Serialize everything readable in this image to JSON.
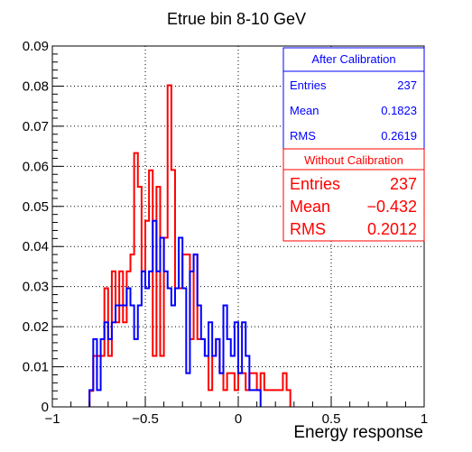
{
  "chart_data": {
    "type": "histogram",
    "title": "Etrue bin 8-10 GeV",
    "xlabel": "Energy response",
    "ylabel": "",
    "xlim": [
      -1,
      1
    ],
    "ylim": [
      0,
      0.09
    ],
    "grid": true,
    "x_ticks": [
      {
        "v": -1,
        "label": "−1"
      },
      {
        "v": -0.5,
        "label": "−0.5"
      },
      {
        "v": 0,
        "label": "0"
      },
      {
        "v": 0.5,
        "label": "0.5"
      },
      {
        "v": 1,
        "label": "1"
      }
    ],
    "y_ticks": [
      {
        "v": 0,
        "label": "0"
      },
      {
        "v": 0.01,
        "label": "0.01"
      },
      {
        "v": 0.02,
        "label": "0.02"
      },
      {
        "v": 0.03,
        "label": "0.03"
      },
      {
        "v": 0.04,
        "label": "0.04"
      },
      {
        "v": 0.05,
        "label": "0.05"
      },
      {
        "v": 0.06,
        "label": "0.06"
      },
      {
        "v": 0.07,
        "label": "0.07"
      },
      {
        "v": 0.08,
        "label": "0.08"
      },
      {
        "v": 0.09,
        "label": "0.09"
      }
    ],
    "bin_edges_start": -0.8,
    "bin_width": 0.02,
    "series": [
      {
        "name": "Without Calibration",
        "color": "#ff0000",
        "values": [
          0.004,
          0.0127,
          0.0127,
          0.0127,
          0.0296,
          0.0127,
          0.0338,
          0.0211,
          0.0338,
          0.0211,
          0.0338,
          0.038,
          0.0633,
          0.0549,
          0.0338,
          0.0464,
          0.059,
          0.0127,
          0.0549,
          0.0127,
          0.0422,
          0.0802,
          0.0591,
          0.0296,
          0.0296,
          0.038,
          0.038,
          0.0169,
          0.038,
          0.0169,
          0.0169,
          0.0127,
          0.0042,
          0.0127,
          0.0169,
          0.0084,
          0.0042,
          0.0084,
          0.0084,
          0.0042,
          0.0084,
          0.0084,
          0.0042,
          0.0084,
          0.0084,
          0.0042,
          0.0084,
          0.0042,
          0.0042,
          0.0042,
          0.0042,
          0.0042,
          0.0084,
          0.0042
        ]
      },
      {
        "name": "After Calibration",
        "color": "#0000ff",
        "values": [
          0.0042,
          0.0169,
          0.0042,
          0.0169,
          0.0211,
          0.0169,
          0.0211,
          0.0253,
          0.0253,
          0.0253,
          0.0296,
          0.0253,
          0.0169,
          0.0253,
          0.0338,
          0.0296,
          0.0338,
          0.0464,
          0.0338,
          0.0422,
          0.0338,
          0.0296,
          0.0253,
          0.0296,
          0.0422,
          0.0296,
          0.0084,
          0.0338,
          0.038,
          0.0253,
          0.0169,
          0.0127,
          0.0211,
          0.0127,
          0.0169,
          0.0084,
          0.0253,
          0.0169,
          0.0127,
          0.0211,
          0.0084,
          0.0211,
          0.0127,
          0.0042,
          0.0042,
          0.0042
        ]
      }
    ],
    "stats_boxes": [
      {
        "title": "After Calibration",
        "color": "#0000ff",
        "rows": [
          {
            "label": "Entries",
            "value": "237"
          },
          {
            "label": "Mean",
            "value": "0.1823"
          },
          {
            "label": "RMS",
            "value": "0.2619"
          }
        ]
      },
      {
        "title": "Without Calibration",
        "color": "#ff0000",
        "rows": [
          {
            "label": "Entries",
            "value": "237"
          },
          {
            "label": "Mean",
            "value": "−0.432"
          },
          {
            "label": "RMS",
            "value": "0.2012"
          }
        ]
      }
    ]
  }
}
